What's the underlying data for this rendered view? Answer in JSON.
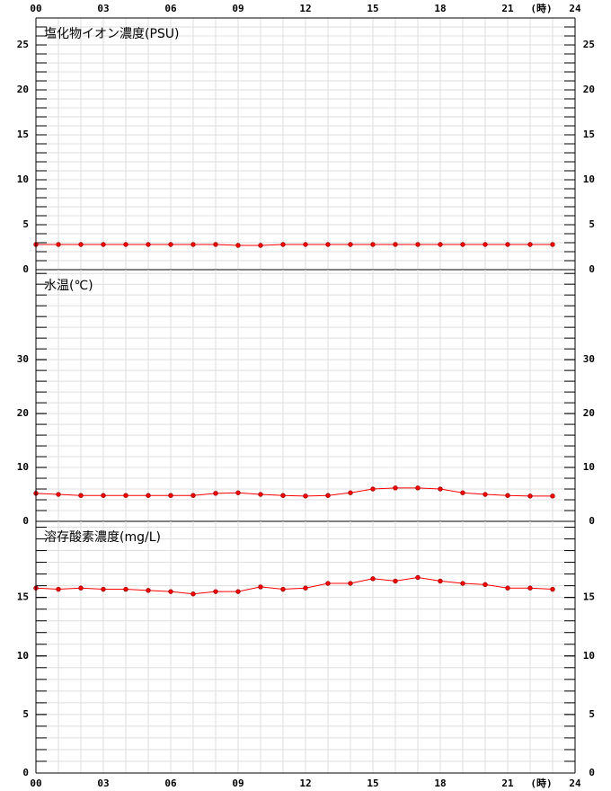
{
  "chart_data": [
    {
      "type": "line",
      "title": "塩化物イオン濃度(PSU)",
      "xlabel": "(時)",
      "x": [
        0,
        1,
        2,
        3,
        4,
        5,
        6,
        7,
        8,
        9,
        10,
        11,
        12,
        13,
        14,
        15,
        16,
        17,
        18,
        19,
        20,
        21,
        22,
        23
      ],
      "values": [
        2.8,
        2.8,
        2.8,
        2.8,
        2.8,
        2.8,
        2.8,
        2.8,
        2.8,
        2.7,
        2.7,
        2.8,
        2.8,
        2.8,
        2.8,
        2.8,
        2.8,
        2.8,
        2.8,
        2.8,
        2.8,
        2.8,
        2.8,
        2.8
      ],
      "color": "#ff0000",
      "xlim": [
        0,
        24
      ],
      "xticks": [
        {
          "value": 0,
          "label": "00"
        },
        {
          "value": 3,
          "label": "03"
        },
        {
          "value": 6,
          "label": "06"
        },
        {
          "value": 9,
          "label": "09"
        },
        12,
        15,
        18,
        21,
        24
      ],
      "ylim": [
        0,
        28
      ],
      "yticks": [
        0,
        5,
        10,
        15,
        20,
        25
      ],
      "grid": true
    },
    {
      "type": "line",
      "title": "水温(℃)",
      "x": [
        0,
        1,
        2,
        3,
        4,
        5,
        6,
        7,
        8,
        9,
        10,
        11,
        12,
        13,
        14,
        15,
        16,
        17,
        18,
        19,
        20,
        21,
        22,
        23
      ],
      "values": [
        5.2,
        5.0,
        4.8,
        4.8,
        4.8,
        4.8,
        4.8,
        4.8,
        5.2,
        5.3,
        5.0,
        4.8,
        4.7,
        4.8,
        5.3,
        6.0,
        6.2,
        6.2,
        6.0,
        5.3,
        5.0,
        4.8,
        4.7,
        4.7
      ],
      "color": "#ff0000",
      "xlim": [
        0,
        24
      ],
      "ylim": [
        0,
        46.7
      ],
      "yticks": [
        0,
        10,
        20,
        30
      ],
      "grid": true
    },
    {
      "type": "line",
      "title": "溶存酸素濃度(mg/L)",
      "xlabel": "(時)",
      "x": [
        0,
        1,
        2,
        3,
        4,
        5,
        6,
        7,
        8,
        9,
        10,
        11,
        12,
        13,
        14,
        15,
        16,
        17,
        18,
        19,
        20,
        21,
        22,
        23
      ],
      "values": [
        15.8,
        15.7,
        15.8,
        15.7,
        15.7,
        15.6,
        15.5,
        15.3,
        15.5,
        15.5,
        15.9,
        15.7,
        15.8,
        16.2,
        16.2,
        16.6,
        16.4,
        16.7,
        16.4,
        16.2,
        16.1,
        15.8,
        15.8,
        15.7
      ],
      "color": "#ff0000",
      "xlim": [
        0,
        24
      ],
      "xticks": [
        {
          "value": 0,
          "label": "00"
        },
        {
          "value": 3,
          "label": "03"
        },
        {
          "value": 6,
          "label": "06"
        },
        {
          "value": 9,
          "label": "09"
        },
        12,
        15,
        18,
        21,
        24
      ],
      "ylim": [
        0,
        21.5
      ],
      "yticks": [
        0,
        5,
        10,
        15
      ],
      "grid": true
    }
  ]
}
